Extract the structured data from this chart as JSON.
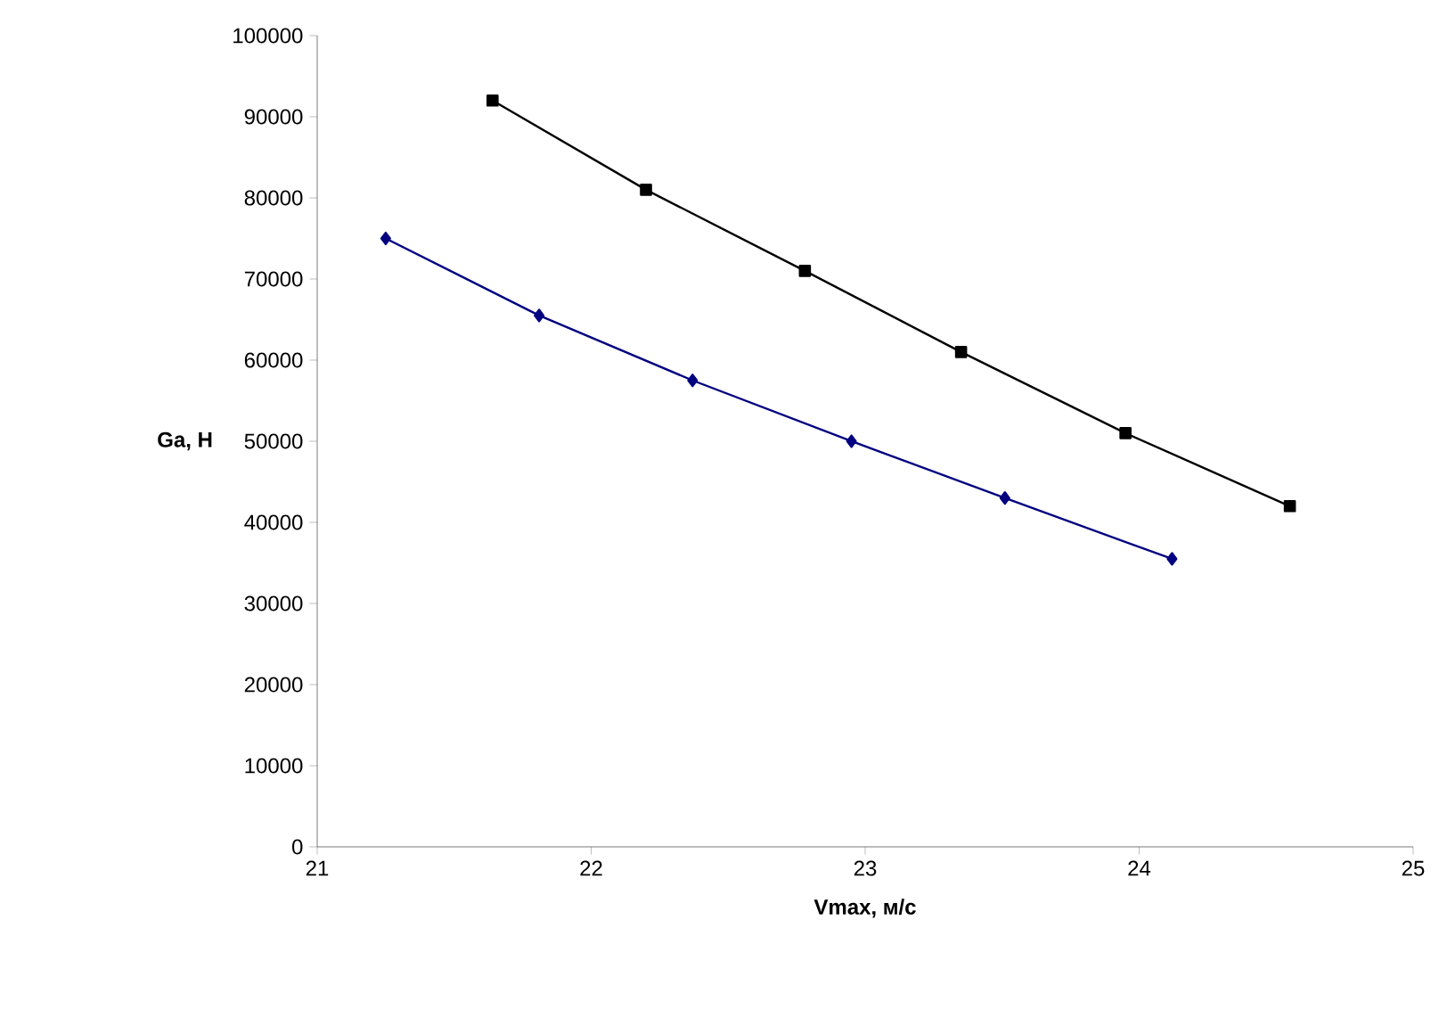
{
  "chart_data": {
    "type": "line",
    "xlabel": "Vmax, м/с",
    "ylabel": "Ga, Н",
    "xlim": [
      21,
      25
    ],
    "xticks": [
      21,
      22,
      23,
      24,
      25
    ],
    "ylim": [
      0,
      100000
    ],
    "yticks": [
      0,
      10000,
      20000,
      30000,
      40000,
      50000,
      60000,
      70000,
      80000,
      90000,
      100000
    ],
    "grid": false,
    "series": [
      {
        "color": "#000080",
        "marker": "diamond",
        "x": [
          21.25,
          21.81,
          22.37,
          22.95,
          23.51,
          24.12
        ],
        "values": [
          75000,
          65500,
          57500,
          50000,
          43000,
          35500
        ]
      },
      {
        "color": "#000000",
        "marker": "square",
        "x": [
          21.64,
          22.2,
          22.78,
          23.35,
          23.95,
          24.55
        ],
        "values": [
          92000,
          81000,
          71000,
          61000,
          51000,
          42000
        ]
      }
    ]
  }
}
